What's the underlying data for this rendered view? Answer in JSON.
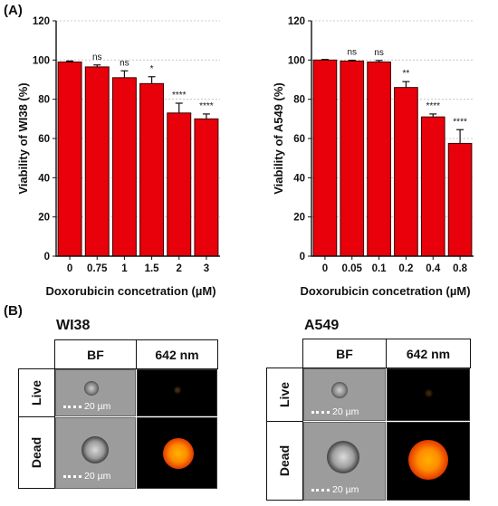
{
  "panel_a_label": "(A)",
  "panel_b_label": "(B)",
  "colors": {
    "bar": "#e8000b",
    "bar_edge": "#3a0000",
    "pink_accent": "#e37ad6"
  },
  "chart_data": [
    {
      "type": "bar",
      "title": "",
      "xlabel": "Doxorubicin concetration (µM)",
      "ylabel": "Viability of WI38 (%)",
      "ylim": [
        0,
        120
      ],
      "yticks": [
        "0",
        "20",
        "40",
        "60",
        "80",
        "100",
        "120"
      ],
      "categories": [
        "0",
        "0.75",
        "1",
        "1.5",
        "2",
        "3"
      ],
      "values": [
        99,
        96.5,
        91,
        88,
        73,
        70
      ],
      "errors": [
        0.5,
        1,
        3.5,
        3.5,
        5,
        2.5
      ],
      "significance": [
        "",
        "ns",
        "ns",
        "*",
        "****",
        "****"
      ],
      "grid": true
    },
    {
      "type": "bar",
      "title": "",
      "xlabel": "Doxorubicin concetration (µM)",
      "ylabel": "Viability of A549 (%)",
      "ylim": [
        0,
        120
      ],
      "yticks": [
        "0",
        "20",
        "40",
        "60",
        "80",
        "100",
        "120"
      ],
      "categories": [
        "0",
        "0.05",
        "0.1",
        "0.2",
        "0.4",
        "0.8"
      ],
      "values": [
        100,
        99.5,
        99,
        86,
        71,
        57.5
      ],
      "errors": [
        0.3,
        0.4,
        0.8,
        3,
        1.5,
        7
      ],
      "significance": [
        "",
        "ns",
        "ns",
        "**",
        "****",
        "****"
      ],
      "grid": true
    }
  ],
  "imaging": [
    {
      "cell_line": "WI38",
      "col_headers": [
        "BF",
        "642 nm"
      ],
      "rows": [
        "Live",
        "Dead"
      ],
      "scale_label": "20 µm"
    },
    {
      "cell_line": "A549",
      "col_headers": [
        "BF",
        "642 nm"
      ],
      "rows": [
        "Live",
        "Dead"
      ],
      "scale_label": "20 µm"
    }
  ]
}
